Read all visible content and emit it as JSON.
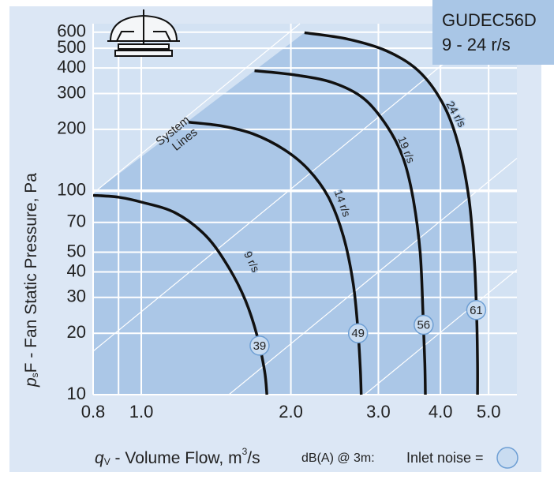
{
  "chart_data": {
    "type": "line",
    "title": "GUDEC56D",
    "subtitle": "9 - 24 r/s",
    "xlabel": {
      "symbol": "q",
      "subscript": "V",
      "text": " - Volume Flow, m",
      "superscript": "3",
      "suffix": "/s"
    },
    "ylabel": {
      "symbol": "p",
      "subscript": "s",
      "text": "F - Fan Static Pressure, Pa"
    },
    "xscale": "log",
    "yscale": "log",
    "grid": true,
    "xlim": [
      0.8,
      5.7
    ],
    "ylim": [
      10,
      660
    ],
    "xticks": [
      0.8,
      {
        "value": 1,
        "label": "1.0"
      },
      {
        "value": 2,
        "label": "2.0"
      },
      {
        "value": 3,
        "label": "3.0"
      },
      {
        "value": 4,
        "label": "4.0"
      },
      {
        "value": 5,
        "label": "5.0"
      }
    ],
    "xminor": [
      0.9
    ],
    "yticks": [
      10,
      20,
      30,
      40,
      50,
      70,
      100,
      200,
      300,
      400,
      500,
      600
    ],
    "annotation": [
      "System",
      "Lines"
    ],
    "noise_legend": {
      "prefix": "dB(A) @ 3m:",
      "label": "Inlet noise ="
    },
    "series": [
      {
        "name": "9 r/s",
        "color": "#111111",
        "x": [
          0.8,
          0.9,
          1.0,
          1.17,
          1.35,
          1.5,
          1.62,
          1.71,
          1.77,
          1.79
        ],
        "values": [
          95,
          93,
          88,
          78,
          60,
          42,
          29,
          19.5,
          13.1,
          10
        ],
        "noise": 39,
        "noise_q": 1.73,
        "noise_p": 17.4
      },
      {
        "name": "14 r/s",
        "color": "#111111",
        "x": [
          1.245,
          1.45,
          1.68,
          1.94,
          2.17,
          2.38,
          2.55,
          2.67,
          2.73,
          2.76,
          2.77
        ],
        "values": [
          217,
          208,
          190,
          159,
          127,
          93,
          60,
          35,
          20.4,
          13.1,
          10
        ],
        "noise": 49,
        "noise_q": 2.73,
        "noise_p": 20
      },
      {
        "name": "19 r/s",
        "color": "#111111",
        "x": [
          1.69,
          2.02,
          2.42,
          2.8,
          3.12,
          3.36,
          3.52,
          3.64,
          3.69,
          3.72,
          3.73
        ],
        "values": [
          388,
          371,
          340,
          284,
          208,
          146,
          93,
          50,
          24.4,
          14.3,
          10
        ],
        "noise": 56,
        "noise_q": 3.7,
        "noise_p": 22
      },
      {
        "name": "24 r/s",
        "color": "#111111",
        "x": [
          2.13,
          2.6,
          3.12,
          3.61,
          4.03,
          4.33,
          4.56,
          4.68,
          4.73,
          4.75,
          4.75
        ],
        "values": [
          596,
          555,
          485,
          388,
          272,
          174,
          93,
          45.6,
          24.4,
          14.3,
          10
        ],
        "noise": 61,
        "noise_q": 4.72,
        "noise_p": 26
      }
    ]
  }
}
